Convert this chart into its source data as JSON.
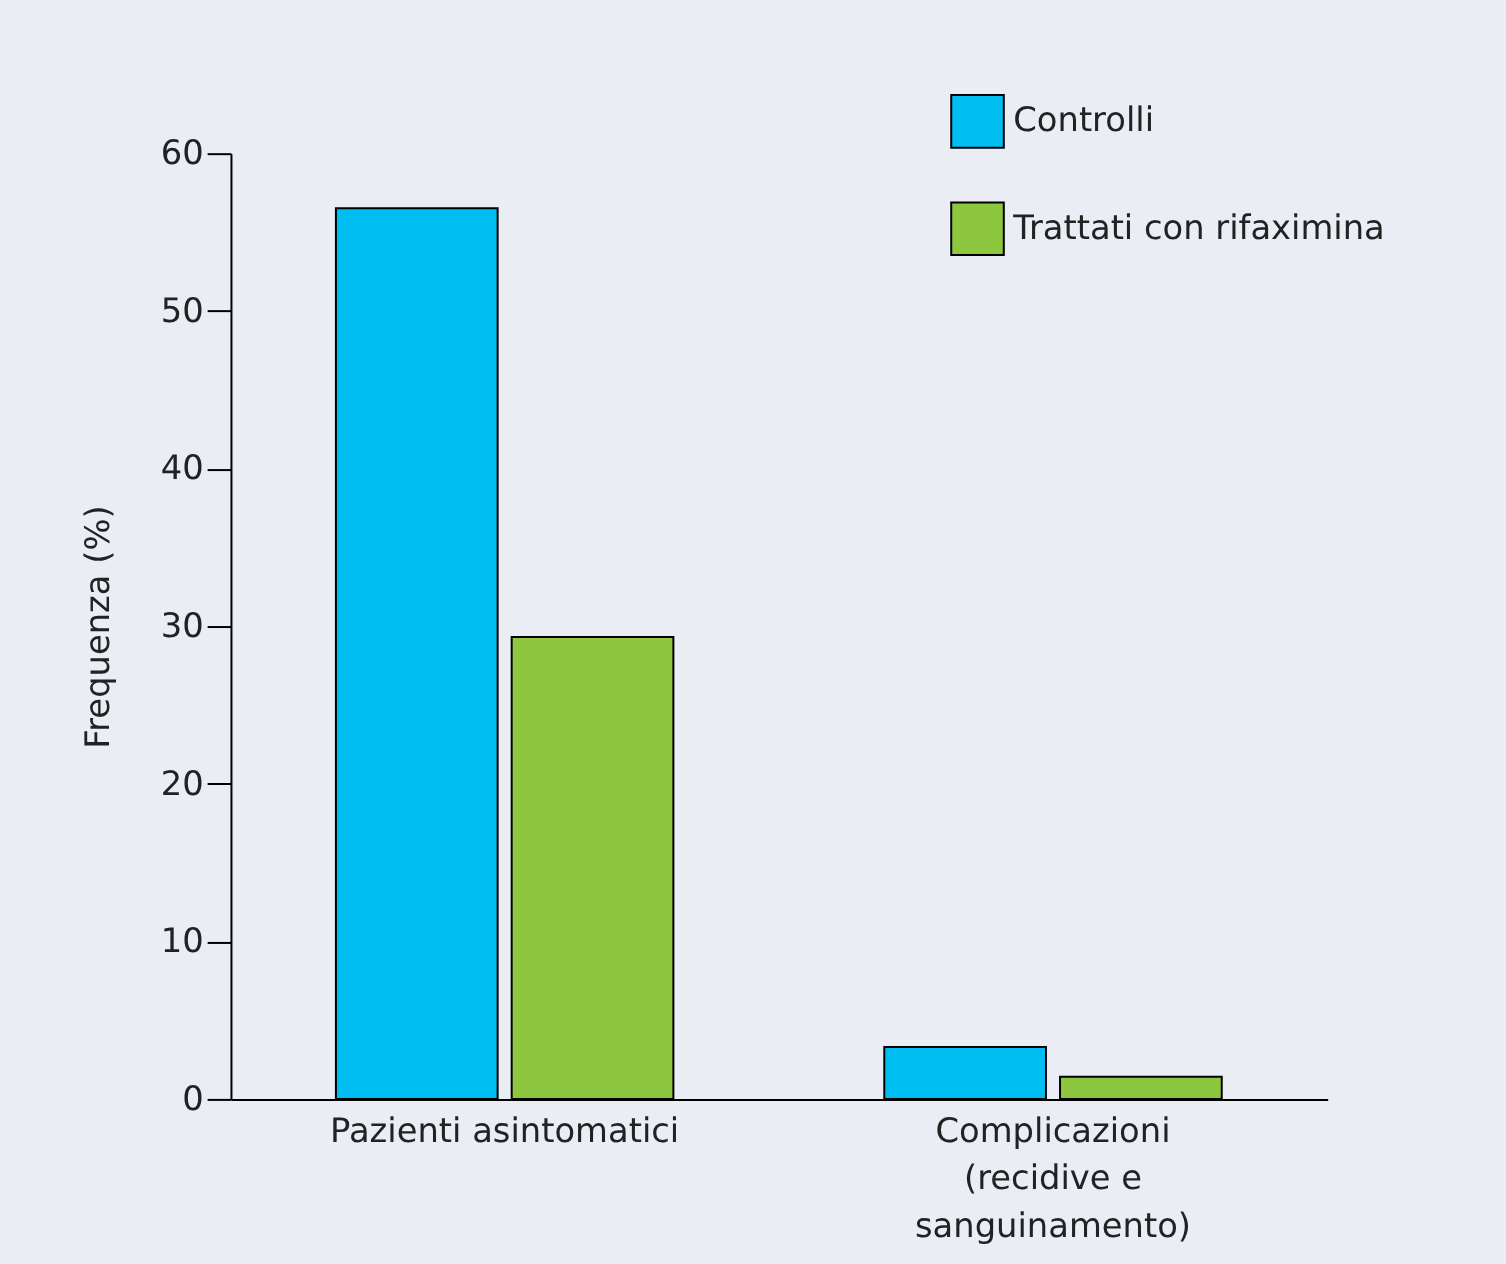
{
  "chart_data": {
    "type": "bar",
    "ylabel": "Frequenza (%)",
    "categories": [
      "Pazienti asintomatici",
      "Complicazioni (recidive e sanguinamento)"
    ],
    "series": [
      {
        "name": "Controlli",
        "color": "#00bef2",
        "values": [
          56.5,
          3.3
        ]
      },
      {
        "name": "Trattati con rifaximina",
        "color": "#8dc63f",
        "values": [
          29.3,
          1.4
        ]
      }
    ],
    "ylim": [
      0,
      60
    ],
    "yticks": [
      0,
      10,
      20,
      30,
      40,
      50,
      60
    ],
    "grid": false,
    "legend": "top right"
  }
}
